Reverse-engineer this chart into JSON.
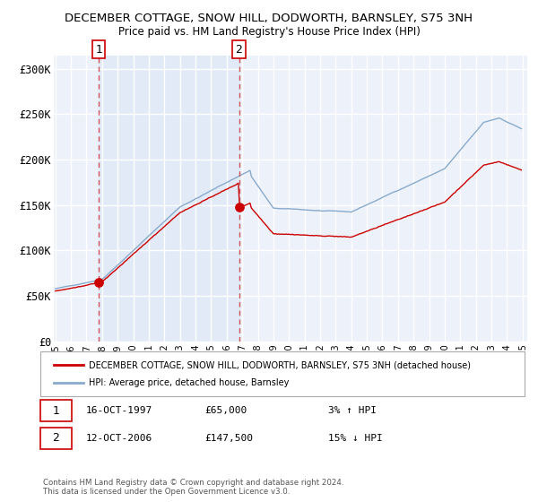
{
  "title": "DECEMBER COTTAGE, SNOW HILL, DODWORTH, BARNSLEY, S75 3NH",
  "subtitle": "Price paid vs. HM Land Registry's House Price Index (HPI)",
  "property_label": "DECEMBER COTTAGE, SNOW HILL, DODWORTH, BARNSLEY, S75 3NH (detached house)",
  "hpi_label": "HPI: Average price, detached house, Barnsley",
  "transaction1_date": "16-OCT-1997",
  "transaction1_price": "£65,000",
  "transaction1_hpi": "3% ↑ HPI",
  "transaction1_year": 1997.79,
  "transaction1_value": 65000,
  "transaction2_date": "12-OCT-2006",
  "transaction2_price": "£147,500",
  "transaction2_hpi": "15% ↓ HPI",
  "transaction2_year": 2006.79,
  "transaction2_value": 147500,
  "ylabel_ticks": [
    "£0",
    "£50K",
    "£100K",
    "£150K",
    "£200K",
    "£250K",
    "£300K"
  ],
  "ytick_values": [
    0,
    50000,
    100000,
    150000,
    200000,
    250000,
    300000
  ],
  "ylim": [
    0,
    315000
  ],
  "property_color": "#cc0000",
  "hpi_color": "#88aacc",
  "dashed_color": "#cc4444",
  "shade_color": "#dde8f5",
  "background_plot": "#edf2fa",
  "background_fig": "#ffffff",
  "grid_color": "#ffffff",
  "footnote": "Contains HM Land Registry data © Crown copyright and database right 2024.\nThis data is licensed under the Open Government Licence v3.0."
}
